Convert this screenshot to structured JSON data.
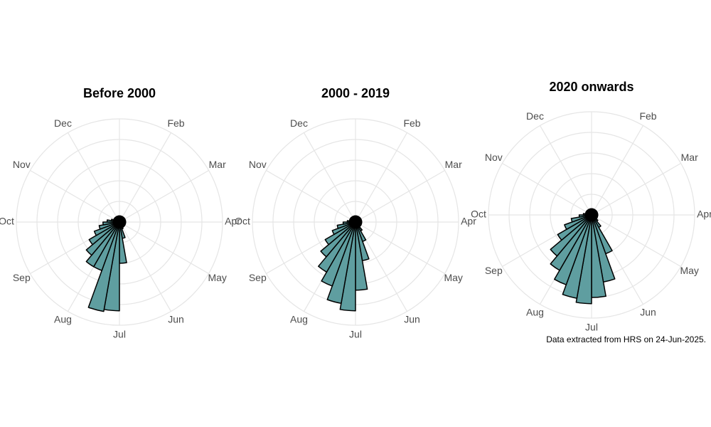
{
  "chart_data": [
    {
      "type": "rose",
      "title": "Before 2000",
      "axis_labels": [
        null,
        "Feb",
        "Mar",
        "Apr",
        "May",
        "Jun",
        "Jul",
        "Aug",
        "Sep",
        "Oct",
        "Nov",
        "Dec"
      ],
      "values": [
        3,
        3,
        3,
        3,
        3,
        3,
        3,
        3,
        3,
        3,
        3,
        3,
        3,
        3,
        3,
        3.5,
        8,
        20,
        43,
        44,
        25,
        25,
        21,
        17,
        13,
        10,
        8,
        6,
        4,
        3,
        3,
        3,
        3,
        3,
        3,
        3
      ],
      "color": "#5f9ea0",
      "rlim": [
        0,
        50
      ],
      "rticks": [
        10,
        20,
        30,
        40,
        50
      ],
      "grid": true
    },
    {
      "type": "rose",
      "title": "2000 - 2019",
      "axis_labels": [
        null,
        "Feb",
        "Mar",
        "Apr",
        "May",
        "Jun",
        "Jul",
        "Aug",
        "Sep",
        "Oct",
        "Nov",
        "Dec"
      ],
      "values": [
        3,
        3,
        3,
        3,
        3,
        3,
        3,
        3,
        3,
        3,
        3,
        3,
        3,
        3,
        5,
        10,
        19,
        33,
        43,
        40,
        33,
        28,
        22,
        17,
        12,
        9,
        6,
        4,
        3,
        3,
        3,
        3,
        3,
        3,
        3,
        3
      ],
      "color": "#5f9ea0",
      "rlim": [
        0,
        50
      ],
      "rticks": [
        10,
        20,
        30,
        40,
        50
      ],
      "grid": true
    },
    {
      "type": "rose",
      "title": "2020 onwards",
      "axis_labels": [
        null,
        "Feb",
        "Mar",
        "Apr",
        "May",
        "Jun",
        "Jul",
        "Aug",
        "Sep",
        "Oct",
        "Nov",
        "Dec"
      ],
      "values": [
        3,
        3,
        3,
        3,
        3,
        3,
        3,
        3,
        3,
        3,
        3,
        3,
        3,
        4,
        7,
        20,
        33,
        40,
        43,
        41,
        36,
        31,
        26,
        19,
        14,
        10,
        6,
        4,
        3,
        3,
        3,
        3,
        3,
        3,
        3,
        3
      ],
      "color": "#5f9ea0",
      "rlim": [
        0,
        50
      ],
      "rticks": [
        10,
        20,
        30,
        40,
        50
      ],
      "grid": true
    }
  ],
  "caption": "Data extracted from HRS on 24-Jun-2025."
}
